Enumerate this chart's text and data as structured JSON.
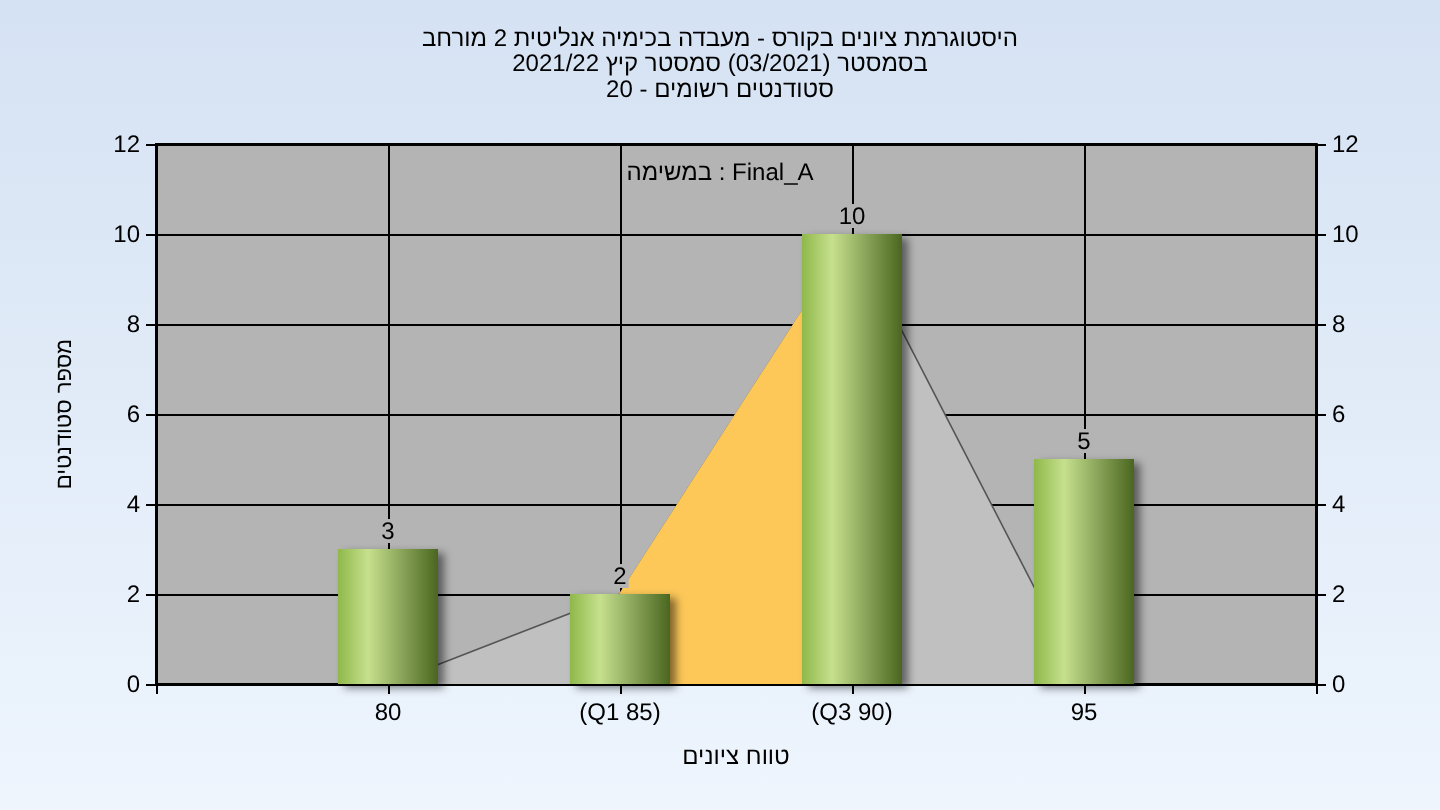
{
  "chart_data": {
    "type": "bar",
    "title": "היסטוגרמת ציונים בקורס - מעבדה בכימיה אנליטית 2 מורחב",
    "subtitle": "בסמסטר (03/2021) סמסטר קיץ 2021/22\nסטודנטים רשומים - 20",
    "xlabel": "טווח ציונים",
    "ylabel": "מספר סטודנטים",
    "annotations": [
      "במשימה : Final_A"
    ],
    "categories": [
      null,
      "80",
      "(Q1 85)",
      "(Q3 90)",
      "95",
      null
    ],
    "series": [
      {
        "type": "area",
        "color": "#c0c0c0",
        "values": [
          null,
          0,
          2,
          10,
          0,
          null
        ]
      },
      {
        "type": "area",
        "color": "#fdc858",
        "values": [
          null,
          null,
          2,
          10,
          null,
          null
        ]
      },
      {
        "color": "#8fb84a",
        "values": [
          null,
          3,
          2,
          10,
          5,
          null
        ],
        "value_labels": [
          null,
          "3",
          "2",
          "10",
          "5",
          null
        ]
      }
    ],
    "ylim": [
      0,
      12
    ],
    "yticks": [
      0,
      2,
      4,
      6,
      8,
      10,
      12
    ],
    "y2lim": [
      0,
      12
    ],
    "y2ticks": [
      0,
      2,
      4,
      6,
      8,
      10,
      12
    ],
    "grid": true
  }
}
